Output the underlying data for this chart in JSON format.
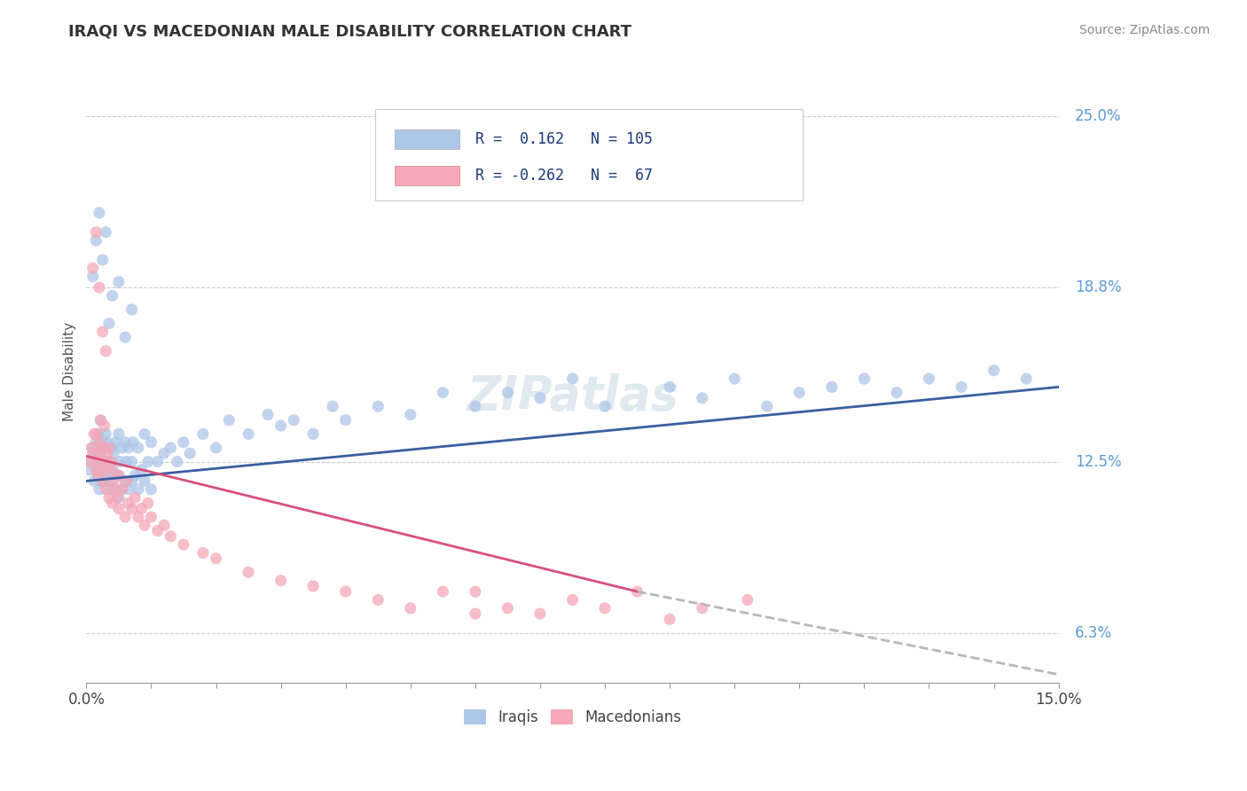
{
  "title": "IRAQI VS MACEDONIAN MALE DISABILITY CORRELATION CHART",
  "source": "Source: ZipAtlas.com",
  "ylabel": "Male Disability",
  "ytick_labels": [
    "6.3%",
    "12.5%",
    "18.8%",
    "25.0%"
  ],
  "ytick_values": [
    6.3,
    12.5,
    18.8,
    25.0
  ],
  "xlim": [
    0.0,
    15.0
  ],
  "ylim": [
    4.5,
    27.0
  ],
  "iraqi_color": "#aec6e8",
  "macedonian_color": "#f4a8b8",
  "iraqi_line_color": "#3a5fa0",
  "macedonian_line_color": "#d9507a",
  "macedonian_dashed_color": "#b8b8b8",
  "legend_iraqi_r": "0.162",
  "legend_iraqi_n": "105",
  "legend_macedonian_r": "-0.262",
  "legend_macedonian_n": "67",
  "watermark": "ZIPatlas",
  "grid_color": "#cccccc",
  "background_color": "#ffffff",
  "iraqi_line_x0": 0.0,
  "iraqi_line_y0": 11.8,
  "iraqi_line_x1": 15.0,
  "iraqi_line_y1": 15.2,
  "mac_line_x0": 0.0,
  "mac_line_y0": 12.7,
  "mac_line_x1": 8.5,
  "mac_line_y1": 7.8,
  "mac_dash_x0": 8.5,
  "mac_dash_y0": 7.8,
  "mac_dash_x1": 15.0,
  "mac_dash_y1": 4.8,
  "iraqi_x": [
    0.05,
    0.08,
    0.1,
    0.12,
    0.12,
    0.15,
    0.15,
    0.18,
    0.18,
    0.2,
    0.2,
    0.22,
    0.22,
    0.22,
    0.25,
    0.25,
    0.25,
    0.28,
    0.28,
    0.3,
    0.3,
    0.3,
    0.32,
    0.32,
    0.35,
    0.35,
    0.35,
    0.38,
    0.38,
    0.4,
    0.4,
    0.4,
    0.42,
    0.45,
    0.45,
    0.48,
    0.5,
    0.5,
    0.5,
    0.52,
    0.55,
    0.55,
    0.6,
    0.6,
    0.62,
    0.65,
    0.65,
    0.7,
    0.7,
    0.72,
    0.75,
    0.8,
    0.8,
    0.85,
    0.9,
    0.9,
    0.95,
    1.0,
    1.0,
    1.1,
    1.2,
    1.3,
    1.4,
    1.5,
    1.6,
    1.8,
    2.0,
    2.2,
    2.5,
    2.8,
    3.0,
    3.2,
    3.5,
    3.8,
    4.0,
    4.5,
    5.0,
    5.5,
    6.0,
    6.5,
    7.0,
    7.5,
    8.0,
    9.0,
    9.5,
    10.0,
    10.5,
    11.0,
    11.5,
    12.0,
    12.5,
    13.0,
    13.5,
    14.0,
    14.5,
    0.1,
    0.15,
    0.2,
    0.25,
    0.3,
    0.35,
    0.4,
    0.5,
    0.6,
    0.7
  ],
  "iraqi_y": [
    12.2,
    12.5,
    13.0,
    11.8,
    12.8,
    12.3,
    13.2,
    12.0,
    13.5,
    11.5,
    12.8,
    12.2,
    13.0,
    14.0,
    11.8,
    12.5,
    13.3,
    12.2,
    13.0,
    11.8,
    12.5,
    13.5,
    12.0,
    13.2,
    11.5,
    12.2,
    13.0,
    11.8,
    12.5,
    11.5,
    12.2,
    13.0,
    12.8,
    11.5,
    13.2,
    12.0,
    11.2,
    12.0,
    13.5,
    12.5,
    11.5,
    13.0,
    11.8,
    13.2,
    12.5,
    11.5,
    13.0,
    11.8,
    12.5,
    13.2,
    12.0,
    11.5,
    13.0,
    12.2,
    11.8,
    13.5,
    12.5,
    11.5,
    13.2,
    12.5,
    12.8,
    13.0,
    12.5,
    13.2,
    12.8,
    13.5,
    13.0,
    14.0,
    13.5,
    14.2,
    13.8,
    14.0,
    13.5,
    14.5,
    14.0,
    14.5,
    14.2,
    15.0,
    14.5,
    15.0,
    14.8,
    15.5,
    14.5,
    15.2,
    14.8,
    15.5,
    14.5,
    15.0,
    15.2,
    15.5,
    15.0,
    15.5,
    15.2,
    15.8,
    15.5,
    19.2,
    20.5,
    21.5,
    19.8,
    20.8,
    17.5,
    18.5,
    19.0,
    17.0,
    18.0
  ],
  "macedonian_x": [
    0.05,
    0.08,
    0.1,
    0.12,
    0.15,
    0.15,
    0.18,
    0.2,
    0.2,
    0.22,
    0.22,
    0.25,
    0.25,
    0.28,
    0.28,
    0.3,
    0.3,
    0.32,
    0.35,
    0.35,
    0.38,
    0.4,
    0.4,
    0.42,
    0.45,
    0.48,
    0.5,
    0.5,
    0.55,
    0.6,
    0.62,
    0.65,
    0.7,
    0.75,
    0.8,
    0.85,
    0.9,
    0.95,
    1.0,
    1.1,
    1.2,
    1.3,
    1.5,
    1.8,
    2.0,
    2.5,
    3.0,
    3.5,
    4.0,
    4.5,
    5.0,
    5.5,
    6.0,
    6.0,
    6.5,
    7.0,
    7.5,
    8.0,
    8.5,
    9.0,
    9.5,
    10.2,
    0.1,
    0.15,
    0.2,
    0.25,
    0.3
  ],
  "macedonian_y": [
    12.5,
    13.0,
    12.8,
    13.5,
    12.2,
    13.5,
    12.0,
    12.5,
    13.2,
    12.8,
    14.0,
    11.8,
    13.0,
    12.2,
    13.8,
    11.5,
    12.5,
    12.8,
    11.2,
    13.0,
    12.5,
    11.0,
    12.2,
    11.8,
    11.5,
    11.2,
    10.8,
    12.0,
    11.5,
    10.5,
    11.8,
    11.0,
    10.8,
    11.2,
    10.5,
    10.8,
    10.2,
    11.0,
    10.5,
    10.0,
    10.2,
    9.8,
    9.5,
    9.2,
    9.0,
    8.5,
    8.2,
    8.0,
    7.8,
    7.5,
    7.2,
    7.8,
    7.0,
    7.8,
    7.2,
    7.0,
    7.5,
    7.2,
    7.8,
    6.8,
    7.2,
    7.5,
    19.5,
    20.8,
    18.8,
    17.2,
    16.5
  ]
}
